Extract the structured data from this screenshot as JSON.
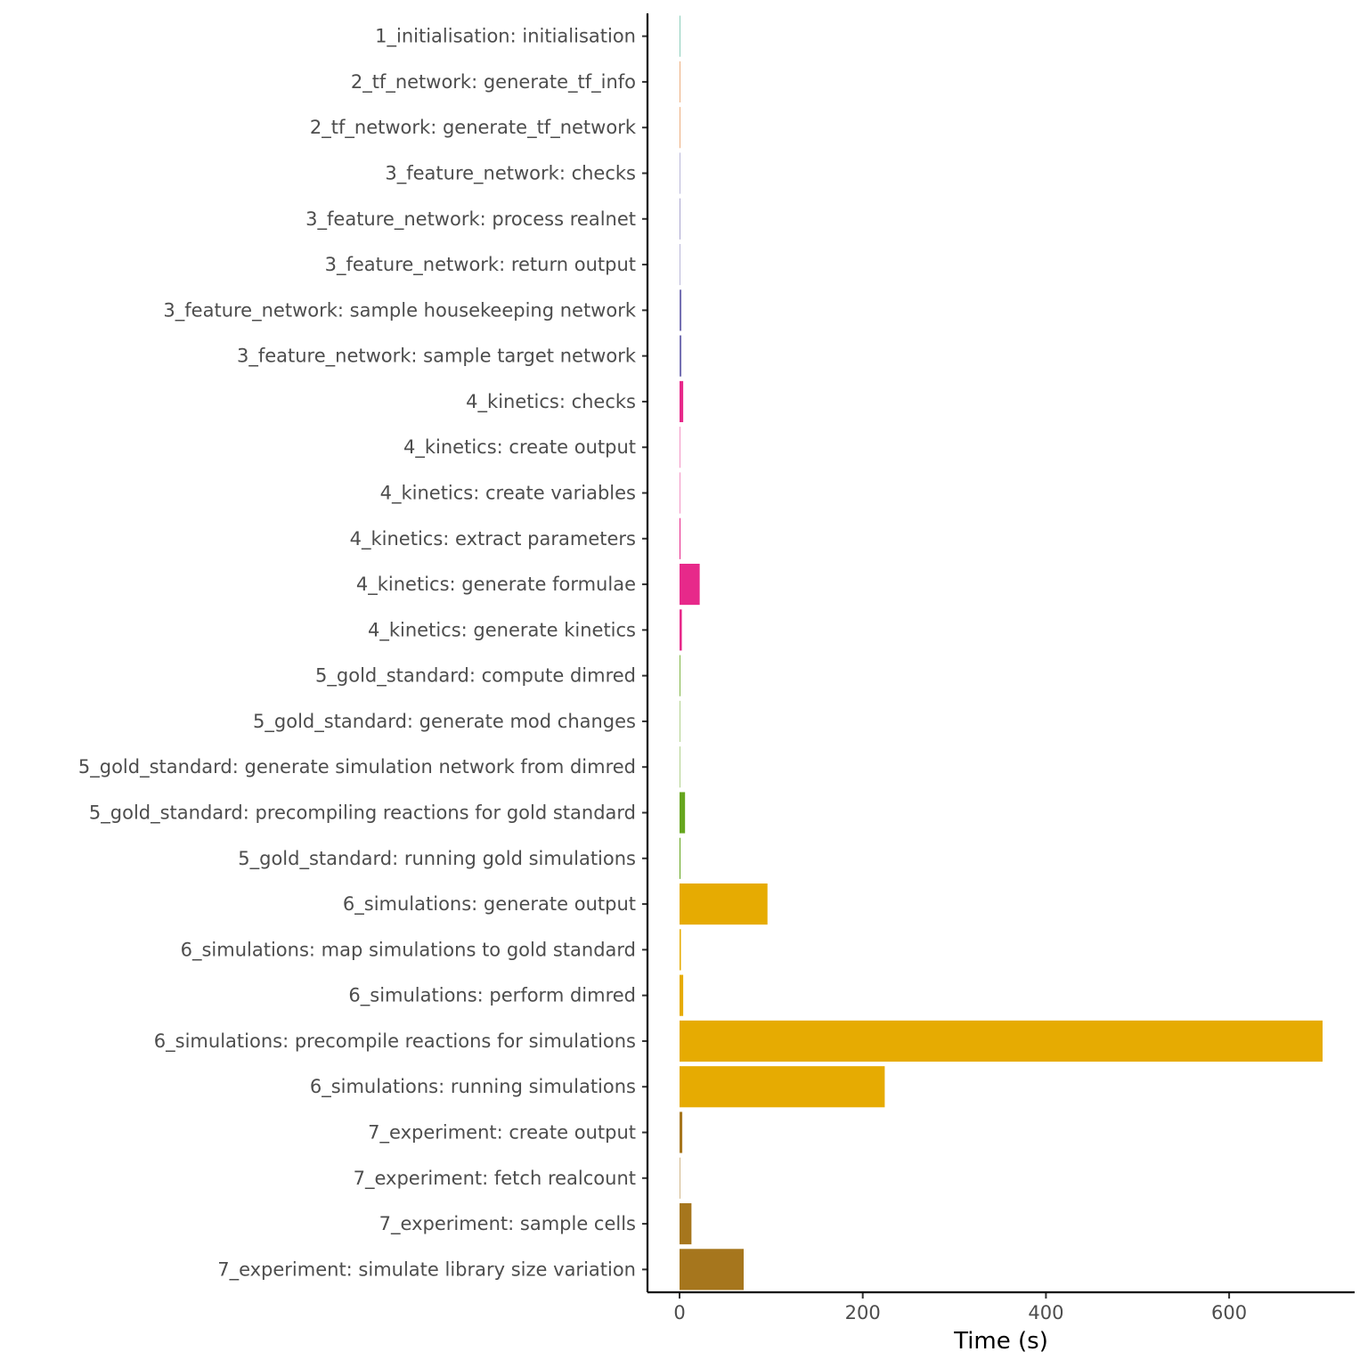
{
  "chart_data": {
    "type": "bar",
    "orientation": "horizontal",
    "xlabel": "Time (s)",
    "ylabel": "",
    "xlim": [
      -33,
      735
    ],
    "xticks": [
      0,
      200,
      400,
      600
    ],
    "grid": false,
    "legend": "none",
    "categories": [
      "1_initialisation: initialisation",
      "2_tf_network: generate_tf_info",
      "2_tf_network: generate_tf_network",
      "3_feature_network: checks",
      "3_feature_network: process realnet",
      "3_feature_network: return output",
      "3_feature_network: sample housekeeping network",
      "3_feature_network: sample target network",
      "4_kinetics: checks",
      "4_kinetics: create output",
      "4_kinetics: create variables",
      "4_kinetics: extract parameters",
      "4_kinetics: generate formulae",
      "4_kinetics: generate kinetics",
      "5_gold_standard: compute dimred",
      "5_gold_standard: generate mod changes",
      "5_gold_standard: generate simulation network from dimred",
      "5_gold_standard: precompiling reactions for gold standard",
      "5_gold_standard: running gold simulations",
      "6_simulations: generate output",
      "6_simulations: map simulations to gold standard",
      "6_simulations: perform dimred",
      "6_simulations: precompile reactions for simulations",
      "6_simulations: running simulations",
      "7_experiment: create output",
      "7_experiment: fetch realcount",
      "7_experiment: sample cells",
      "7_experiment: simulate library size variation"
    ],
    "values": [
      0.02,
      0.05,
      0.4,
      0.3,
      0.6,
      0.05,
      2.0,
      2.0,
      4.0,
      0.05,
      0.05,
      1.0,
      22,
      2.5,
      0.8,
      0.05,
      0.05,
      6.0,
      1.0,
      96,
      1.5,
      4.0,
      702,
      224,
      3.0,
      0.5,
      13,
      70
    ],
    "colors": [
      "#1B9E77",
      "#D95F02",
      "#D95F02",
      "#7570B3",
      "#7570B3",
      "#7570B3",
      "#7570B3",
      "#7570B3",
      "#E7298A",
      "#E7298A",
      "#E7298A",
      "#E7298A",
      "#E7298A",
      "#E7298A",
      "#66A61E",
      "#66A61E",
      "#66A61E",
      "#66A61E",
      "#66A61E",
      "#E6AB02",
      "#E6AB02",
      "#E6AB02",
      "#E6AB02",
      "#E6AB02",
      "#A6761D",
      "#A6761D",
      "#A6761D",
      "#A6761D"
    ]
  }
}
